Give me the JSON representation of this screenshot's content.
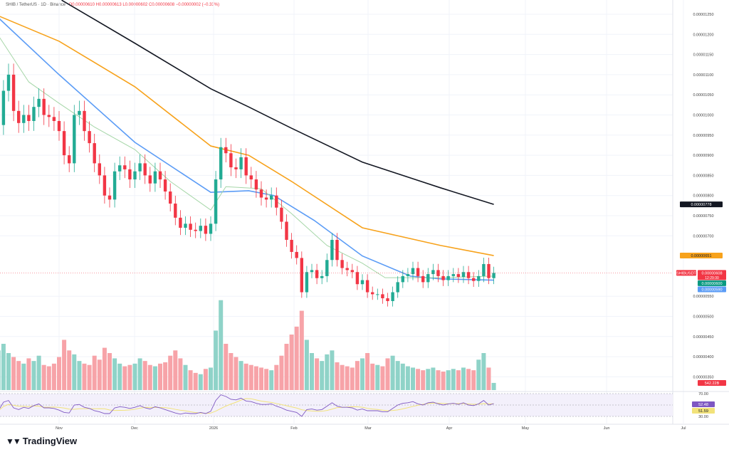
{
  "header": {
    "symbol": "SHIB / TetherUS · 1D · Binance",
    "ohlc": "O0.00000610 H0.00000613 L0.00000602 C0.00000608 −0.00000002 (−0.33%)"
  },
  "logo": "TradingView",
  "chart_data": {
    "type": "candlestick",
    "symbol": "SHIBUSDT",
    "colors": {
      "up": "#22ab94",
      "down": "#f23645",
      "vol_up": "#8fd3c8",
      "vol_down": "#f7a3a8",
      "ma200": "#131722",
      "ma100": "#f7a21b",
      "ma50": "#5b9cf6",
      "ma20": "#a5d6a7",
      "rsi": "#7e57c2",
      "rsi_ma": "#f2e27a"
    },
    "price_ticks": [
      "0.00001250",
      "0.00001200",
      "0.00001150",
      "0.00001100",
      "0.00001050",
      "0.00001000",
      "0.00000950",
      "0.00000900",
      "0.00000850",
      "0.00000800",
      "0.00000750",
      "0.00000700",
      "0.00000550",
      "0.00000500",
      "0.00000450",
      "0.00000400",
      "0.00000350"
    ],
    "x_ticks": [
      "Nov",
      "Dec",
      "2026",
      "Feb",
      "Mar",
      "Apr",
      "May",
      "Jun",
      "Jul"
    ],
    "price_badges": {
      "ma200": "0.00000778",
      "ma100": "0.00000651",
      "symbol": "SHIBUSDT",
      "last": "0.00000608",
      "countdown": "12:29:30",
      "ma20": "0.00000600",
      "ma50": "0.00000590",
      "volume": "542.22B"
    },
    "rsi_badges": {
      "rsi": "52.48",
      "rsi_ma": "51.59",
      "upper": "70.00",
      "lower": "30.00"
    },
    "dates": [
      "2025-10-08",
      "2025-10-10",
      "2025-10-12",
      "2025-10-14",
      "2025-10-16",
      "2025-10-18",
      "2025-10-20",
      "2025-10-22",
      "2025-10-24",
      "2025-10-26",
      "2025-10-28",
      "2025-10-30",
      "2025-11-01",
      "2025-11-03",
      "2025-11-05",
      "2025-11-07",
      "2025-11-09",
      "2025-11-11",
      "2025-11-13",
      "2025-11-15",
      "2025-11-17",
      "2025-11-19",
      "2025-11-21",
      "2025-11-23",
      "2025-11-25",
      "2025-11-27",
      "2025-11-29",
      "2025-12-01",
      "2025-12-03",
      "2025-12-05",
      "2025-12-07",
      "2025-12-09",
      "2025-12-11",
      "2025-12-13",
      "2025-12-15",
      "2025-12-17",
      "2025-12-19",
      "2025-12-21",
      "2025-12-23",
      "2025-12-25",
      "2025-12-27",
      "2025-12-29",
      "2025-12-31",
      "2026-01-02",
      "2026-01-04",
      "2026-01-06",
      "2026-01-08",
      "2026-01-10",
      "2026-01-12",
      "2026-01-14",
      "2026-01-16",
      "2026-01-18",
      "2026-01-20",
      "2026-01-22",
      "2026-01-24",
      "2026-01-26",
      "2026-01-28",
      "2026-01-30",
      "2026-02-01",
      "2026-02-03",
      "2026-02-05",
      "2026-02-07",
      "2026-02-09",
      "2026-02-11",
      "2026-02-13",
      "2026-02-15",
      "2026-02-17",
      "2026-02-19",
      "2026-02-21",
      "2026-02-23",
      "2026-02-25",
      "2026-02-27",
      "2026-03-01",
      "2026-03-03",
      "2026-03-05",
      "2026-03-07",
      "2026-03-09",
      "2026-03-11",
      "2026-03-13",
      "2026-03-15",
      "2026-03-17",
      "2026-03-19",
      "2026-03-21",
      "2026-03-23",
      "2026-03-25",
      "2026-03-27",
      "2026-03-29",
      "2026-03-31",
      "2026-04-02",
      "2026-04-04",
      "2026-04-06",
      "2026-04-08",
      "2026-04-10",
      "2026-04-12",
      "2026-04-14",
      "2026-04-16",
      "2026-04-18",
      "2026-04-20",
      "2026-04-22"
    ],
    "close": [
      9.75e-06,
      1.06e-05,
      1.1e-05,
      1.01e-05,
      9.8e-06,
      1e-05,
      9.85e-06,
      1.02e-05,
      1.04e-05,
      1e-05,
      9.95e-06,
      9.85e-06,
      9.6e-06,
      9e-06,
      8.8e-06,
      1e-05,
      1.01e-05,
      9.6e-06,
      9.3e-06,
      8.8e-06,
      8.5e-06,
      8e-06,
      7.9e-06,
      8.6e-06,
      8.75e-06,
      8.65e-06,
      8.4e-06,
      8.6e-06,
      8.8e-06,
      8.5e-06,
      8.3e-06,
      8.6e-06,
      8.4e-06,
      8.1e-06,
      7.8e-06,
      7.45e-06,
      7.2e-06,
      7.3e-06,
      7.15e-06,
      7.12e-06,
      7.25e-06,
      7.05e-06,
      7.3e-06,
      8.4e-06,
      9.2e-06,
      9.05e-06,
      8.7e-06,
      8.65e-06,
      8.95e-06,
      8.5e-06,
      8.4e-06,
      8.15e-06,
      7.95e-06,
      7.9e-06,
      8e-06,
      7.7e-06,
      7.35e-06,
      6.9e-06,
      6.6e-06,
      6.45e-06,
      5.6e-06,
      6.1e-06,
      6.15e-06,
      5.95e-06,
      6e-06,
      6.4e-06,
      6.9e-06,
      6.4e-06,
      6.2e-06,
      6.15e-06,
      6.1e-06,
      5.8e-06,
      5.9e-06,
      5.6e-06,
      5.55e-06,
      5.55e-06,
      5.45e-06,
      5.38e-06,
      5.6e-06,
      5.85e-06,
      6e-06,
      6.05e-06,
      6.2e-06,
      6e-06,
      5.85e-06,
      6.05e-06,
      6.15e-06,
      6e-06,
      5.9e-06,
      6e-06,
      6.05e-06,
      5.98e-06,
      6.1e-06,
      5.95e-06,
      5.88e-06,
      6e-06,
      6.3e-06,
      5.95e-06,
      6.08e-06
    ],
    "volume_billions": [
      3000,
      3500,
      2800,
      2500,
      2200,
      2000,
      2400,
      2200,
      2600,
      1900,
      1800,
      2000,
      2500,
      3800,
      3000,
      2700,
      2200,
      2000,
      1900,
      2600,
      2300,
      3200,
      2800,
      2400,
      2000,
      1800,
      1900,
      2000,
      2400,
      2200,
      1900,
      1800,
      2000,
      2100,
      2600,
      3000,
      2400,
      1900,
      1500,
      1300,
      1200,
      1600,
      1700,
      4500,
      6800,
      3500,
      2800,
      2500,
      2200,
      2000,
      1900,
      1800,
      1700,
      1600,
      1500,
      1900,
      2600,
      3500,
      4200,
      4800,
      6000,
      3800,
      2800,
      2400,
      2200,
      2700,
      3000,
      2100,
      1900,
      1800,
      1700,
      2200,
      2400,
      2800,
      2000,
      1900,
      1800,
      2400,
      2600,
      2200,
      2000,
      1800,
      1700,
      1600,
      1500,
      1600,
      1700,
      1500,
      1400,
      1500,
      1600,
      1500,
      1700,
      1600,
      1500,
      2300,
      2800,
      1700,
      542.22
    ],
    "rsi": [
      40,
      55,
      58,
      45,
      42,
      46,
      44,
      49,
      52,
      45,
      45,
      44,
      41,
      37,
      36,
      50,
      51,
      46,
      44,
      40,
      38,
      35,
      35,
      45,
      47,
      46,
      44,
      46,
      49,
      45,
      43,
      47,
      45,
      42,
      39,
      36,
      34,
      36,
      35,
      35,
      37,
      35,
      39,
      58,
      68,
      65,
      60,
      59,
      62,
      57,
      56,
      53,
      51,
      51,
      52,
      48,
      45,
      41,
      39,
      37,
      30,
      42,
      43,
      41,
      42,
      48,
      54,
      48,
      46,
      46,
      45,
      41,
      43,
      40,
      40,
      40,
      38,
      38,
      44,
      50,
      53,
      54,
      56,
      52,
      50,
      54,
      55,
      52,
      50,
      52,
      53,
      51,
      54,
      50,
      49,
      52,
      58,
      50,
      52.48
    ],
    "moving_averages": [
      {
        "key": "ma200",
        "points": [
          [
            "2025-11-02",
            1.285e-05
          ],
          [
            "2025-12-01",
            1.178e-05
          ],
          [
            "2025-12-31",
            1.065e-05
          ],
          [
            "2026-01-15",
            1.02e-05
          ],
          [
            "2026-02-01",
            9.67e-06
          ],
          [
            "2026-03-01",
            8.83e-06
          ],
          [
            "2026-04-01",
            8.19e-06
          ],
          [
            "2026-04-22",
            7.78e-06
          ]
        ]
      },
      {
        "key": "ma100",
        "points": [
          [
            "2025-10-08",
            1.246e-05
          ],
          [
            "2025-11-01",
            1.183e-05
          ],
          [
            "2025-12-01",
            1.07e-05
          ],
          [
            "2025-12-31",
            9.23e-06
          ],
          [
            "2026-01-15",
            9e-06
          ],
          [
            "2026-02-01",
            8.35e-06
          ],
          [
            "2026-03-01",
            7.2e-06
          ],
          [
            "2026-04-01",
            6.76e-06
          ],
          [
            "2026-04-22",
            6.51e-06
          ]
        ]
      },
      {
        "key": "ma50",
        "points": [
          [
            "2025-10-08",
            1.241e-05
          ],
          [
            "2025-11-01",
            1.1e-05
          ],
          [
            "2025-12-01",
            9.32e-06
          ],
          [
            "2025-12-31",
            8.08e-06
          ],
          [
            "2026-01-15",
            8.12e-06
          ],
          [
            "2026-01-25",
            8e-06
          ],
          [
            "2026-02-10",
            7.38e-06
          ],
          [
            "2026-03-01",
            6.5e-06
          ],
          [
            "2026-03-20",
            6e-06
          ],
          [
            "2026-04-01",
            5.93e-06
          ],
          [
            "2026-04-22",
            5.9e-06
          ]
        ]
      },
      {
        "key": "ma20",
        "points": [
          [
            "2025-10-08",
            1.197e-05
          ],
          [
            "2025-10-20",
            1.082e-05
          ],
          [
            "2025-11-01",
            1.029e-05
          ],
          [
            "2025-11-15",
            9.7e-06
          ],
          [
            "2025-12-01",
            9.14e-06
          ],
          [
            "2025-12-15",
            8.35e-06
          ],
          [
            "2025-12-31",
            7.64e-06
          ],
          [
            "2026-01-06",
            8.22e-06
          ],
          [
            "2026-01-20",
            8.17e-06
          ],
          [
            "2026-02-01",
            7.55e-06
          ],
          [
            "2026-02-15",
            6.76e-06
          ],
          [
            "2026-03-01",
            6.32e-06
          ],
          [
            "2026-03-10",
            5.96e-06
          ],
          [
            "2026-04-01",
            5.96e-06
          ],
          [
            "2026-04-22",
            6e-06
          ]
        ]
      }
    ]
  }
}
